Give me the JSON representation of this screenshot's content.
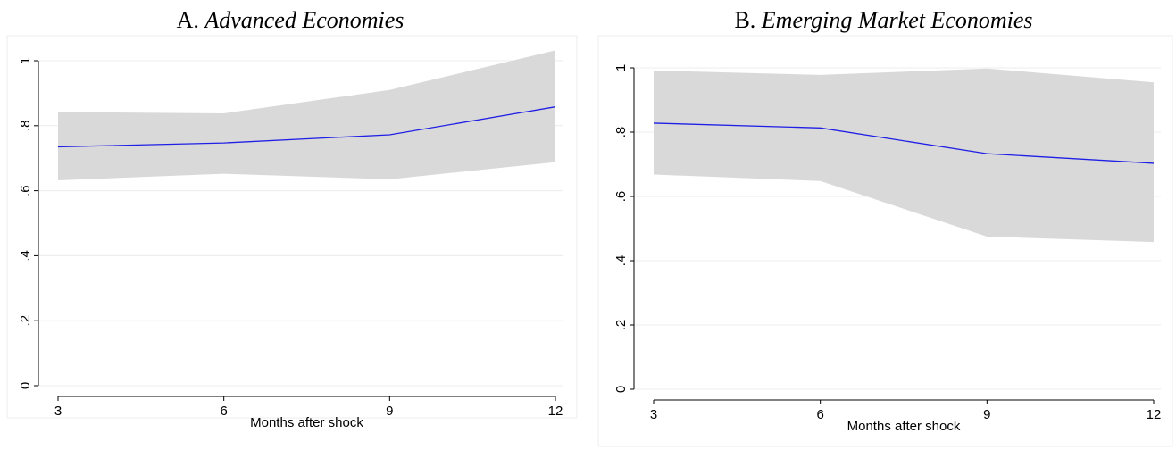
{
  "chart_data": [
    {
      "type": "line",
      "title_letter": "A.",
      "title": "Advanced Economies",
      "xlabel": "Months after shock",
      "ylabel": "",
      "x": [
        3,
        6,
        9,
        12
      ],
      "xticks": [
        "3",
        "6",
        "9",
        "12"
      ],
      "yticks": [
        "0",
        ".2",
        ".4",
        ".6",
        ".8",
        "1"
      ],
      "xlim": [
        3,
        12
      ],
      "ylim": [
        0,
        1
      ],
      "grid": true,
      "series": [
        {
          "values": [
            0.735,
            0.747,
            0.772,
            0.858
          ]
        }
      ],
      "band": {
        "lower": [
          0.632,
          0.652,
          0.635,
          0.688
        ],
        "upper": [
          0.842,
          0.838,
          0.91,
          1.032
        ]
      },
      "colors": {
        "line": "#1f1fe6",
        "band": "#d9d9d9",
        "grid": "#ececec"
      }
    },
    {
      "type": "line",
      "title_letter": "B.",
      "title": "Emerging Market Economies",
      "xlabel": "Months after shock",
      "ylabel": "",
      "x": [
        3,
        6,
        9,
        12
      ],
      "xticks": [
        "3",
        "6",
        "9",
        "12"
      ],
      "yticks": [
        "0",
        ".2",
        ".4",
        ".6",
        ".8",
        "1"
      ],
      "xlim": [
        3,
        12
      ],
      "ylim": [
        0,
        1
      ],
      "grid": true,
      "series": [
        {
          "values": [
            0.828,
            0.813,
            0.733,
            0.703
          ]
        }
      ],
      "band": {
        "lower": [
          0.668,
          0.648,
          0.475,
          0.458
        ],
        "upper": [
          0.992,
          0.978,
          0.998,
          0.955
        ]
      },
      "colors": {
        "line": "#1f1fe6",
        "band": "#d9d9d9",
        "grid": "#ececec"
      }
    }
  ]
}
